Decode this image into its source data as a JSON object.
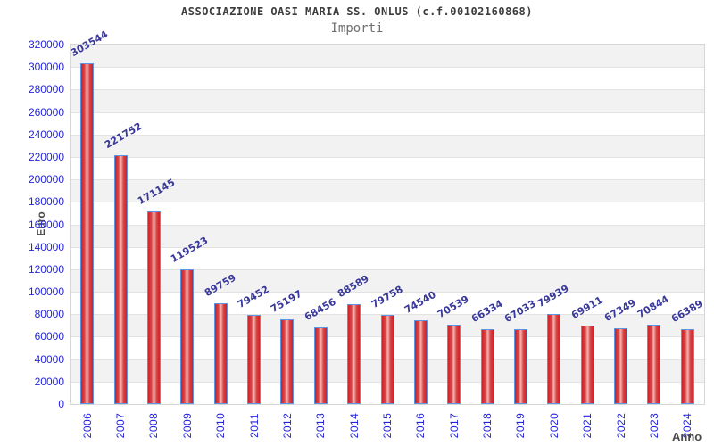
{
  "chart_data": {
    "type": "bar",
    "title": "ASSOCIAZIONE OASI MARIA SS. ONLUS (c.f.00102160868)",
    "subtitle": "Importi",
    "xlabel": "Anno",
    "ylabel": "Euro",
    "categories": [
      "2006",
      "2007",
      "2008",
      "2009",
      "2010",
      "2011",
      "2012",
      "2013",
      "2014",
      "2015",
      "2016",
      "2017",
      "2018",
      "2019",
      "2020",
      "2021",
      "2022",
      "2023",
      "2024"
    ],
    "values": [
      303544,
      221752,
      171145,
      119523,
      89759,
      79452,
      75197,
      68456,
      88589,
      79758,
      74540,
      70539,
      66334,
      67033,
      79939,
      69911,
      67349,
      70844,
      66389
    ],
    "ylim": [
      0,
      320000
    ],
    "ytick_step": 20000,
    "yticks": [
      "0",
      "20000",
      "40000",
      "60000",
      "80000",
      "100000",
      "120000",
      "140000",
      "160000",
      "180000",
      "200000",
      "220000",
      "240000",
      "260000",
      "280000",
      "300000",
      "320000"
    ],
    "grid": true,
    "legend": "none",
    "colors": {
      "title": "#3d3d3d",
      "subtitle": "#6f6f6f",
      "axis_title": "#4a4a4a",
      "tick_label": "#2323e0",
      "value_label": "#39399b",
      "band_gray": "#f2f2f2",
      "band_white": "#ffffff",
      "gridline": "#e2e2e2",
      "bar_edge": "#cf2027",
      "bar_mid": "#d94545",
      "bar_center": "#f2b5b2",
      "bar_border": "#5f94e2"
    }
  }
}
